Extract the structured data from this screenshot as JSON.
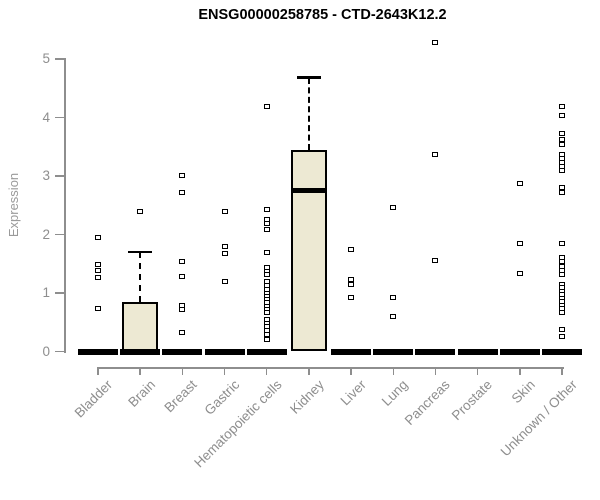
{
  "chart_data": {
    "type": "boxplot",
    "title": "ENSG00000258785 - CTD-2643K12.2",
    "ylabel": "Expression",
    "xlabel": "",
    "yticks": [
      0,
      1,
      2,
      3,
      4,
      5
    ],
    "ylim": [
      0,
      5.5
    ],
    "grid": false,
    "legend": "none",
    "categories": [
      "Bladder",
      "Brain",
      "Breast",
      "Gastric",
      "Hematopoietic cells",
      "Kidney",
      "Liver",
      "Lung",
      "Pancreas",
      "Prostate",
      "Skin",
      "Unknown / Other"
    ],
    "colors": {
      "box_fill": "#EDE9D3",
      "box_border": "#000000",
      "marker": "#000000",
      "axis": "#8E8E8E",
      "title_color": "#000000",
      "background": "#FFFFFF"
    },
    "boxes": [
      {
        "category": "Bladder",
        "q1": 0,
        "median": 0,
        "q3": 0,
        "whisker_high": 0,
        "points": [
          1.95,
          1.49,
          1.38,
          1.26,
          0.74
        ]
      },
      {
        "category": "Brain",
        "q1": 0,
        "median": 0,
        "q3": 0.85,
        "whisker_high": 1.7,
        "points": [
          2.39
        ]
      },
      {
        "category": "Breast",
        "q1": 0,
        "median": 0,
        "q3": 0,
        "whisker_high": 0,
        "points": [
          3.01,
          2.72,
          1.53,
          1.29,
          0.79,
          0.72,
          0.33
        ]
      },
      {
        "category": "Gastric",
        "q1": 0,
        "median": 0,
        "q3": 0,
        "whisker_high": 0,
        "points": [
          2.39,
          1.79,
          1.67,
          1.19
        ]
      },
      {
        "category": "Hematopoietic cells",
        "q1": 0,
        "median": 0,
        "q3": 0,
        "whisker_high": 0,
        "points": [
          4.18,
          2.42,
          2.26,
          2.18,
          2.08,
          1.7,
          1.43,
          1.37,
          1.31,
          1.19,
          1.13,
          1.06,
          1.0,
          0.94,
          0.89,
          0.83,
          0.77,
          0.71,
          0.66,
          0.54,
          0.48,
          0.42,
          0.36,
          0.29,
          0.2
        ]
      },
      {
        "category": "Kidney",
        "q1": 0,
        "median": 2.76,
        "q3": 3.44,
        "whisker_high": 4.68,
        "points": []
      },
      {
        "category": "Liver",
        "q1": 0,
        "median": 0,
        "q3": 0,
        "whisker_high": 0,
        "points": [
          1.75,
          1.23,
          1.15,
          0.93
        ]
      },
      {
        "category": "Lung",
        "q1": 0,
        "median": 0,
        "q3": 0,
        "whisker_high": 0,
        "points": [
          2.47,
          0.93,
          0.59
        ]
      },
      {
        "category": "Pancreas",
        "q1": 0,
        "median": 0,
        "q3": 0,
        "whisker_high": 0,
        "points": [
          5.29,
          3.36,
          1.56
        ]
      },
      {
        "category": "Prostate",
        "q1": 0,
        "median": 0,
        "q3": 0,
        "whisker_high": 0,
        "points": []
      },
      {
        "category": "Skin",
        "q1": 0,
        "median": 0,
        "q3": 0,
        "whisker_high": 0,
        "points": [
          2.88,
          1.84,
          1.33
        ]
      },
      {
        "category": "Unknown / Other",
        "q1": 0,
        "median": 0,
        "q3": 0,
        "whisker_high": 0,
        "points": [
          4.18,
          4.03,
          3.73,
          3.62,
          3.53,
          3.37,
          3.3,
          3.23,
          3.16,
          3.09,
          2.81,
          2.71,
          1.84,
          1.6,
          1.53,
          1.46,
          1.39,
          1.32,
          1.15,
          1.09,
          1.03,
          0.97,
          0.91,
          0.85,
          0.79,
          0.73,
          0.67,
          0.38,
          0.26
        ]
      }
    ]
  }
}
